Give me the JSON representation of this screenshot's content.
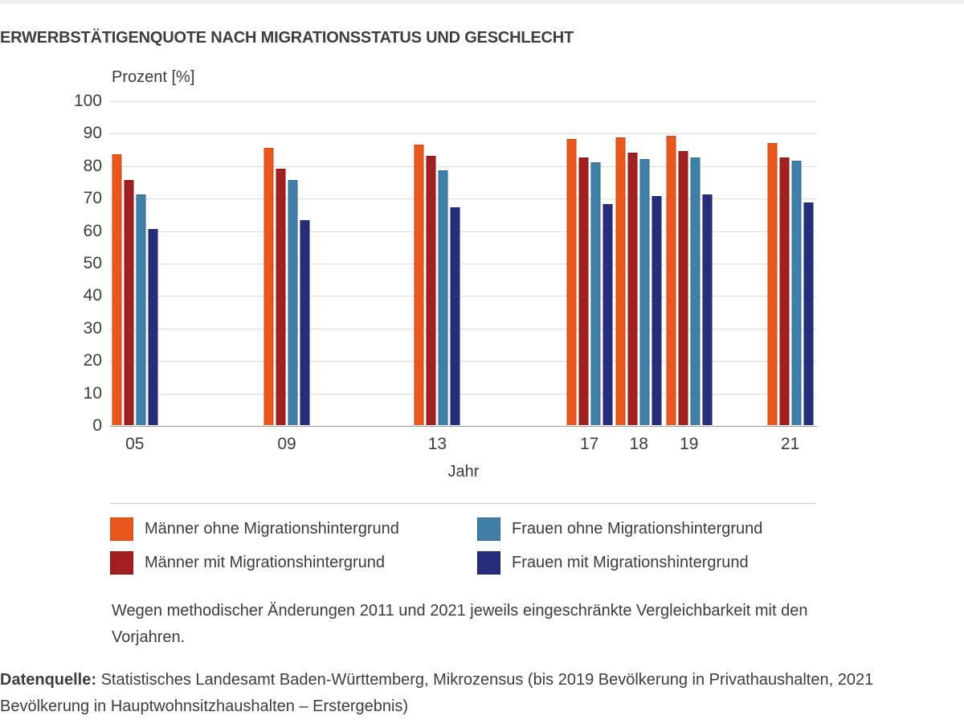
{
  "title": "ERWERBSTÄTIGENQUOTE NACH MIGRATIONSSTATUS UND GESCHLECHT",
  "chart_data": {
    "type": "bar",
    "title": "ERWERBSTÄTIGENQUOTE NACH MIGRATIONSSTATUS UND GESCHLECHT",
    "y_axis_title": "Prozent [%]",
    "x_axis_title": "Jahr",
    "ylim": [
      0,
      100
    ],
    "y_ticks": [
      0,
      10,
      20,
      30,
      40,
      50,
      60,
      70,
      80,
      90,
      100
    ],
    "grid": true,
    "legend_position": "bottom",
    "categories": [
      "05",
      "09",
      "13",
      "17",
      "18",
      "19",
      "21"
    ],
    "x_centers_pct": [
      3.5,
      25.0,
      46.3,
      67.8,
      74.8,
      81.9,
      96.2
    ],
    "series": [
      {
        "name": "Männer ohne Migrationshintergrund",
        "color": "#e8571d",
        "border_color": "#c94712",
        "values": [
          83.5,
          85.5,
          86.5,
          88,
          88.5,
          89,
          87
        ]
      },
      {
        "name": "Männer mit Migrationshintergrund",
        "color": "#a12020",
        "border_color": "#851717",
        "values": [
          75.5,
          79,
          83,
          82.5,
          84,
          84.5,
          82.5
        ]
      },
      {
        "name": "Frauen ohne Migrationshintergrund",
        "color": "#4080a6",
        "border_color": "#2f6a8e",
        "values": [
          71,
          75.5,
          78.5,
          81,
          82,
          82.5,
          81.5
        ]
      },
      {
        "name": "Frauen mit Migrationshintergrund",
        "color": "#262e7c",
        "border_color": "#1b2260",
        "values": [
          60.5,
          63,
          67,
          68,
          70.5,
          71,
          68.5
        ]
      }
    ]
  },
  "legend": {
    "columns": 2,
    "order": [
      0,
      2,
      1,
      3
    ]
  },
  "footnote": "Wegen methodischer Änderungen 2011 und 2021 jeweils eingeschränkte Vergleichbarkeit mit den Vorjahren.",
  "source": {
    "label": "Datenquelle:",
    "text": " Statistisches Landesamt Baden-Württemberg, Mikrozensus (bis 2019 Bevölkerung in Privathaushalten, 2021 Bevölkerung in Hauptwohnsitzhaushalten – Erstergebnis)"
  }
}
